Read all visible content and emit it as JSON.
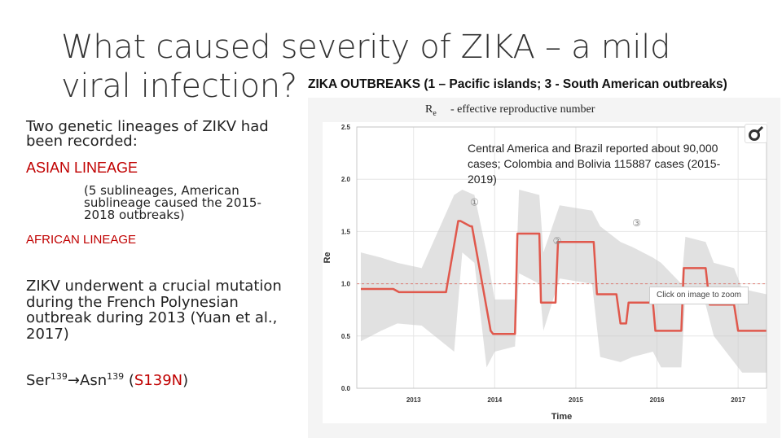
{
  "slide": {
    "title": "What caused severity of ZIKA – a mild viral infection?",
    "chart_heading": "ZIKA OUTBREAKS (1 – Pacific islands; 3 - South American outbreaks)",
    "left": {
      "intro": "Two genetic lineages of ZIKV had been recorded:",
      "asian_lineage": "ASIAN LINEAGE",
      "sublineage_note": "(5 sublineages, American sublineage caused the 2015-2018 outbreaks)",
      "african_lineage": "AFRICAN LINEAGE",
      "mutation_text": "ZIKV underwent a crucial mutation during the French Polynesian outbreak during 2013 (Yuan et al., 2017)",
      "mutation": {
        "from": "Ser",
        "from_pos": "139",
        "arrow": "→",
        "to": "Asn",
        "to_pos": "139",
        "code": "S139N"
      }
    },
    "legend": {
      "symbol": "R",
      "symbol_sub": "e",
      "description": "- effective reproductive number"
    },
    "note": "Central America and Brazil reported about 90,000 cases; Colombia and Bolivia 115887 cases (2015-2019)",
    "zoom_hint": "Click on image to zoom",
    "logo_icon": "venus-mars-logo-icon"
  },
  "chart_data": {
    "type": "line",
    "title": "",
    "xlabel": "Time",
    "ylabel": "Re",
    "xlim": [
      2012.3,
      2017.35
    ],
    "ylim": [
      0,
      2.5
    ],
    "x_ticks": [
      2013,
      2014,
      2015,
      2016,
      2017
    ],
    "x_tick_labels": [
      "2013",
      "2014",
      "2015",
      "2016",
      "2017"
    ],
    "y_ticks": [
      0.0,
      0.5,
      1.0,
      1.5,
      2.0,
      2.5
    ],
    "y_tick_labels": [
      "0.0",
      "0.5",
      "1.0",
      "1.5",
      "2.0",
      "2.5"
    ],
    "reference_line": 1.0,
    "series": [
      {
        "name": "Re",
        "color": "#e0584c",
        "x": [
          2012.35,
          2012.75,
          2012.82,
          2013.4,
          2013.55,
          2013.58,
          2013.7,
          2013.72,
          2013.95,
          2013.98,
          2014.25,
          2014.28,
          2014.55,
          2014.57,
          2014.75,
          2014.78,
          2015.22,
          2015.26,
          2015.5,
          2015.55,
          2015.62,
          2015.65,
          2015.95,
          2015.98,
          2016.3,
          2016.33,
          2016.6,
          2016.65,
          2016.95,
          2017.0,
          2017.35
        ],
        "y": [
          0.95,
          0.95,
          0.92,
          0.92,
          1.6,
          1.6,
          1.55,
          1.55,
          0.55,
          0.52,
          0.52,
          1.48,
          1.48,
          0.82,
          0.82,
          1.4,
          1.4,
          0.9,
          0.9,
          0.62,
          0.62,
          0.82,
          0.82,
          0.55,
          0.55,
          1.15,
          1.15,
          0.8,
          0.8,
          0.55,
          0.55
        ]
      }
    ],
    "band": {
      "name": "uncertainty",
      "color": "#c8c8c8",
      "x": [
        2012.35,
        2012.6,
        2012.8,
        2013.1,
        2013.5,
        2013.6,
        2013.75,
        2013.9,
        2014.0,
        2014.25,
        2014.3,
        2014.55,
        2014.6,
        2014.8,
        2015.2,
        2015.3,
        2015.55,
        2015.7,
        2015.95,
        2016.05,
        2016.3,
        2016.35,
        2016.6,
        2016.7,
        2016.95,
        2017.05,
        2017.35
      ],
      "lower": [
        0.45,
        0.55,
        0.62,
        0.6,
        0.35,
        1.3,
        1.2,
        0.2,
        0.35,
        0.4,
        1.1,
        1.0,
        0.55,
        1.05,
        1.0,
        0.3,
        0.25,
        0.3,
        0.35,
        0.2,
        0.2,
        0.9,
        0.8,
        0.5,
        0.25,
        0.15,
        0.15
      ],
      "upper": [
        1.3,
        1.25,
        1.2,
        1.15,
        1.85,
        1.9,
        1.85,
        1.3,
        0.85,
        0.85,
        1.9,
        1.85,
        1.3,
        1.75,
        1.7,
        1.55,
        1.4,
        1.35,
        1.25,
        1.2,
        1.0,
        1.45,
        1.4,
        1.2,
        1.15,
        0.95,
        0.9
      ]
    },
    "annotations": [
      {
        "label": "①",
        "x": 2013.75,
        "y": 1.75
      },
      {
        "label": "②",
        "x": 2014.77,
        "y": 1.38
      },
      {
        "label": "③",
        "x": 2015.75,
        "y": 1.55
      }
    ]
  }
}
